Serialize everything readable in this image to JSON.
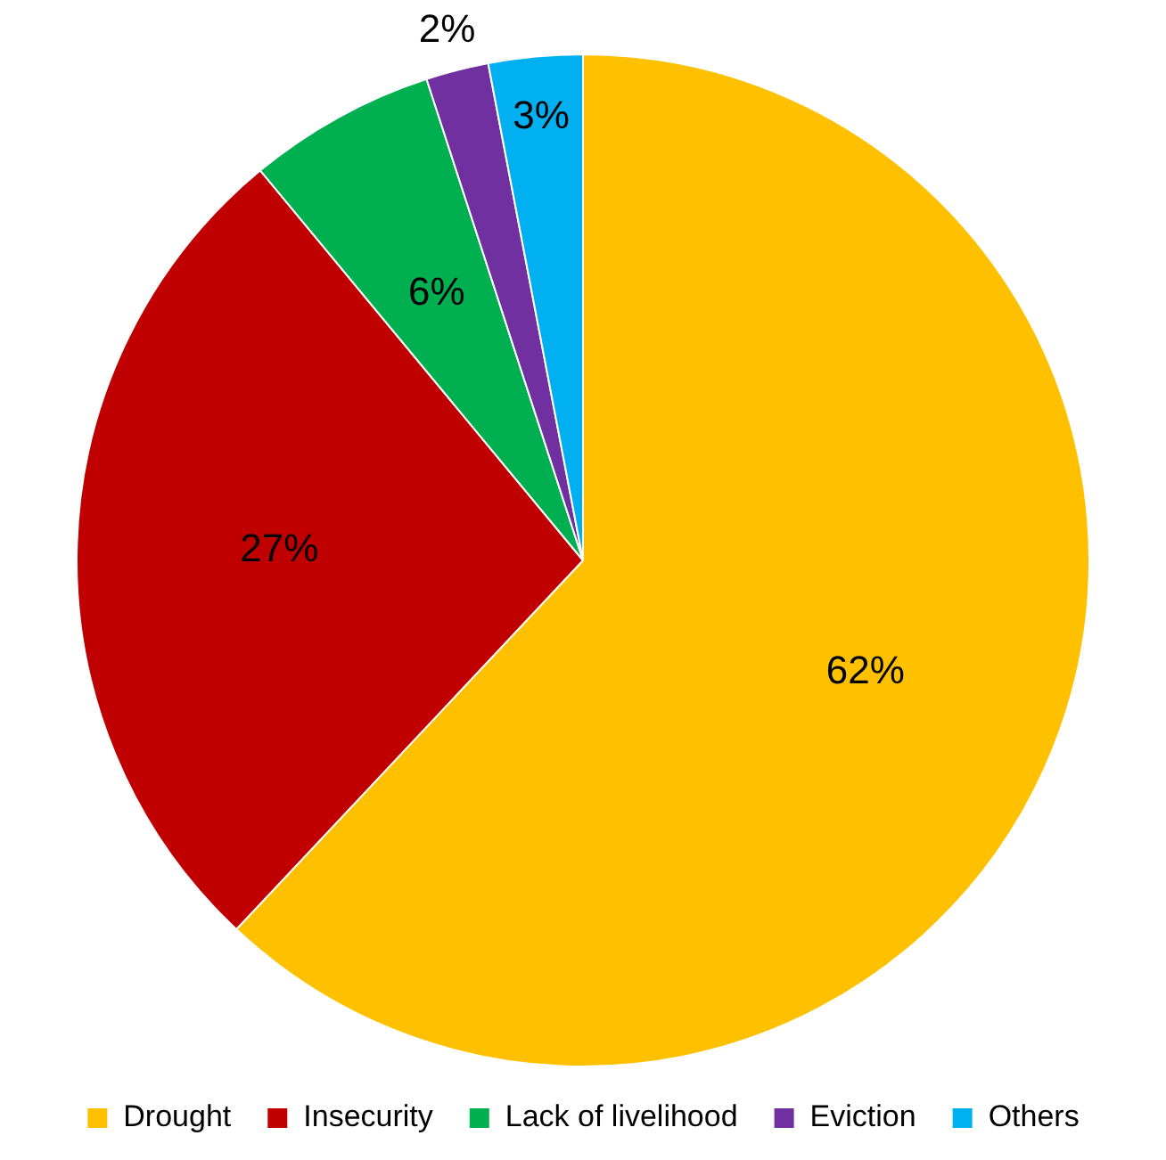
{
  "chart_data": {
    "type": "pie",
    "categories": [
      "Drought",
      "Insecurity",
      "Lack of livelihood",
      "Eviction",
      "Others"
    ],
    "values": [
      62,
      27,
      6,
      2,
      3
    ],
    "colors": [
      "#ffc000",
      "#c00000",
      "#00b050",
      "#7030a0",
      "#00b0f0"
    ],
    "value_labels": [
      "62%",
      "27%",
      "6%",
      "2%",
      "3%"
    ],
    "legend": "bottom"
  }
}
